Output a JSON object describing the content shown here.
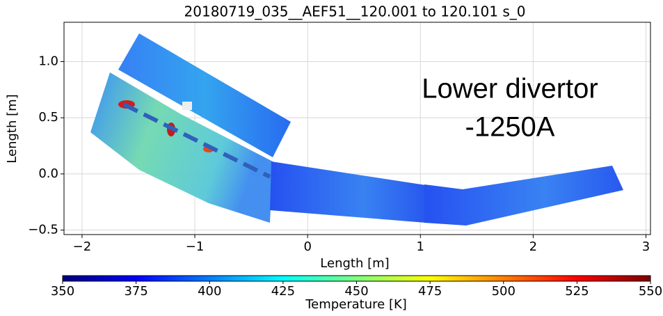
{
  "chart_data": {
    "type": "image",
    "title": "20180719_035__AEF51__120.001 to 120.101 s_0",
    "xlabel": "Length [m]",
    "ylabel": "Length [m]",
    "annotation": [
      "Lower divertor",
      "-1250A"
    ],
    "xlim": [
      -2.16,
      3.04
    ],
    "xticks": [
      {
        "value": -2,
        "label": "−2"
      },
      {
        "value": -1,
        "label": "−1"
      },
      0,
      1,
      2,
      3
    ],
    "ylim": [
      -0.54,
      1.35
    ],
    "yticks": [
      {
        "value": -0.5,
        "label": "−0.5"
      },
      {
        "value": 0,
        "label": "0.0"
      },
      0.5,
      {
        "value": 1,
        "label": "1.0"
      }
    ],
    "grid": true,
    "colormap": "jet",
    "colorbar": {
      "label": "Temperature [K]",
      "lim": [
        350,
        550
      ],
      "ticks": [
        350,
        375,
        400,
        425,
        450,
        475,
        500,
        525,
        550
      ]
    }
  }
}
